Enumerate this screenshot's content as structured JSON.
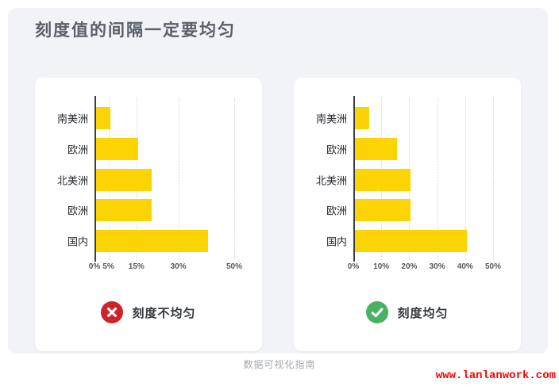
{
  "page": {
    "title": "刻度值的间隔一定要均匀",
    "footer_caption": "数据可视化指南",
    "watermark": "www.lanlanwork.com"
  },
  "colors": {
    "panel_bg": "#F1F3F7",
    "card_bg": "#FFFFFF",
    "bar": "#FCD303",
    "axis": "#3B3E44",
    "gridline": "#D4D7DC",
    "bad": "#CE2328",
    "good": "#47B164",
    "icon_glyph": "#FFFFFF",
    "title_text": "#5A5F68",
    "watermark_text": "#FE0000"
  },
  "chart_data": [
    {
      "type": "bar",
      "orientation": "horizontal",
      "title": "",
      "categories": [
        "南美洲",
        "欧洲",
        "北美洲",
        "欧洲",
        "国内"
      ],
      "values": [
        5,
        15,
        20,
        20,
        40
      ],
      "unit": "%",
      "xlim": [
        0,
        50
      ],
      "ticks": [
        0,
        5,
        15,
        30,
        50
      ],
      "tick_labels": [
        "0%",
        "5%",
        "15%",
        "30%",
        "50%"
      ],
      "grid": true,
      "caption": "刻度不均匀",
      "verdict": "bad"
    },
    {
      "type": "bar",
      "orientation": "horizontal",
      "title": "",
      "categories": [
        "南美洲",
        "欧洲",
        "北美洲",
        "欧洲",
        "国内"
      ],
      "values": [
        5,
        15,
        20,
        20,
        40
      ],
      "unit": "%",
      "xlim": [
        0,
        50
      ],
      "ticks": [
        0,
        10,
        20,
        30,
        40,
        50
      ],
      "tick_labels": [
        "0%",
        "10%",
        "20%",
        "30%",
        "40%",
        "50%"
      ],
      "grid": true,
      "caption": "刻度均匀",
      "verdict": "good"
    }
  ]
}
